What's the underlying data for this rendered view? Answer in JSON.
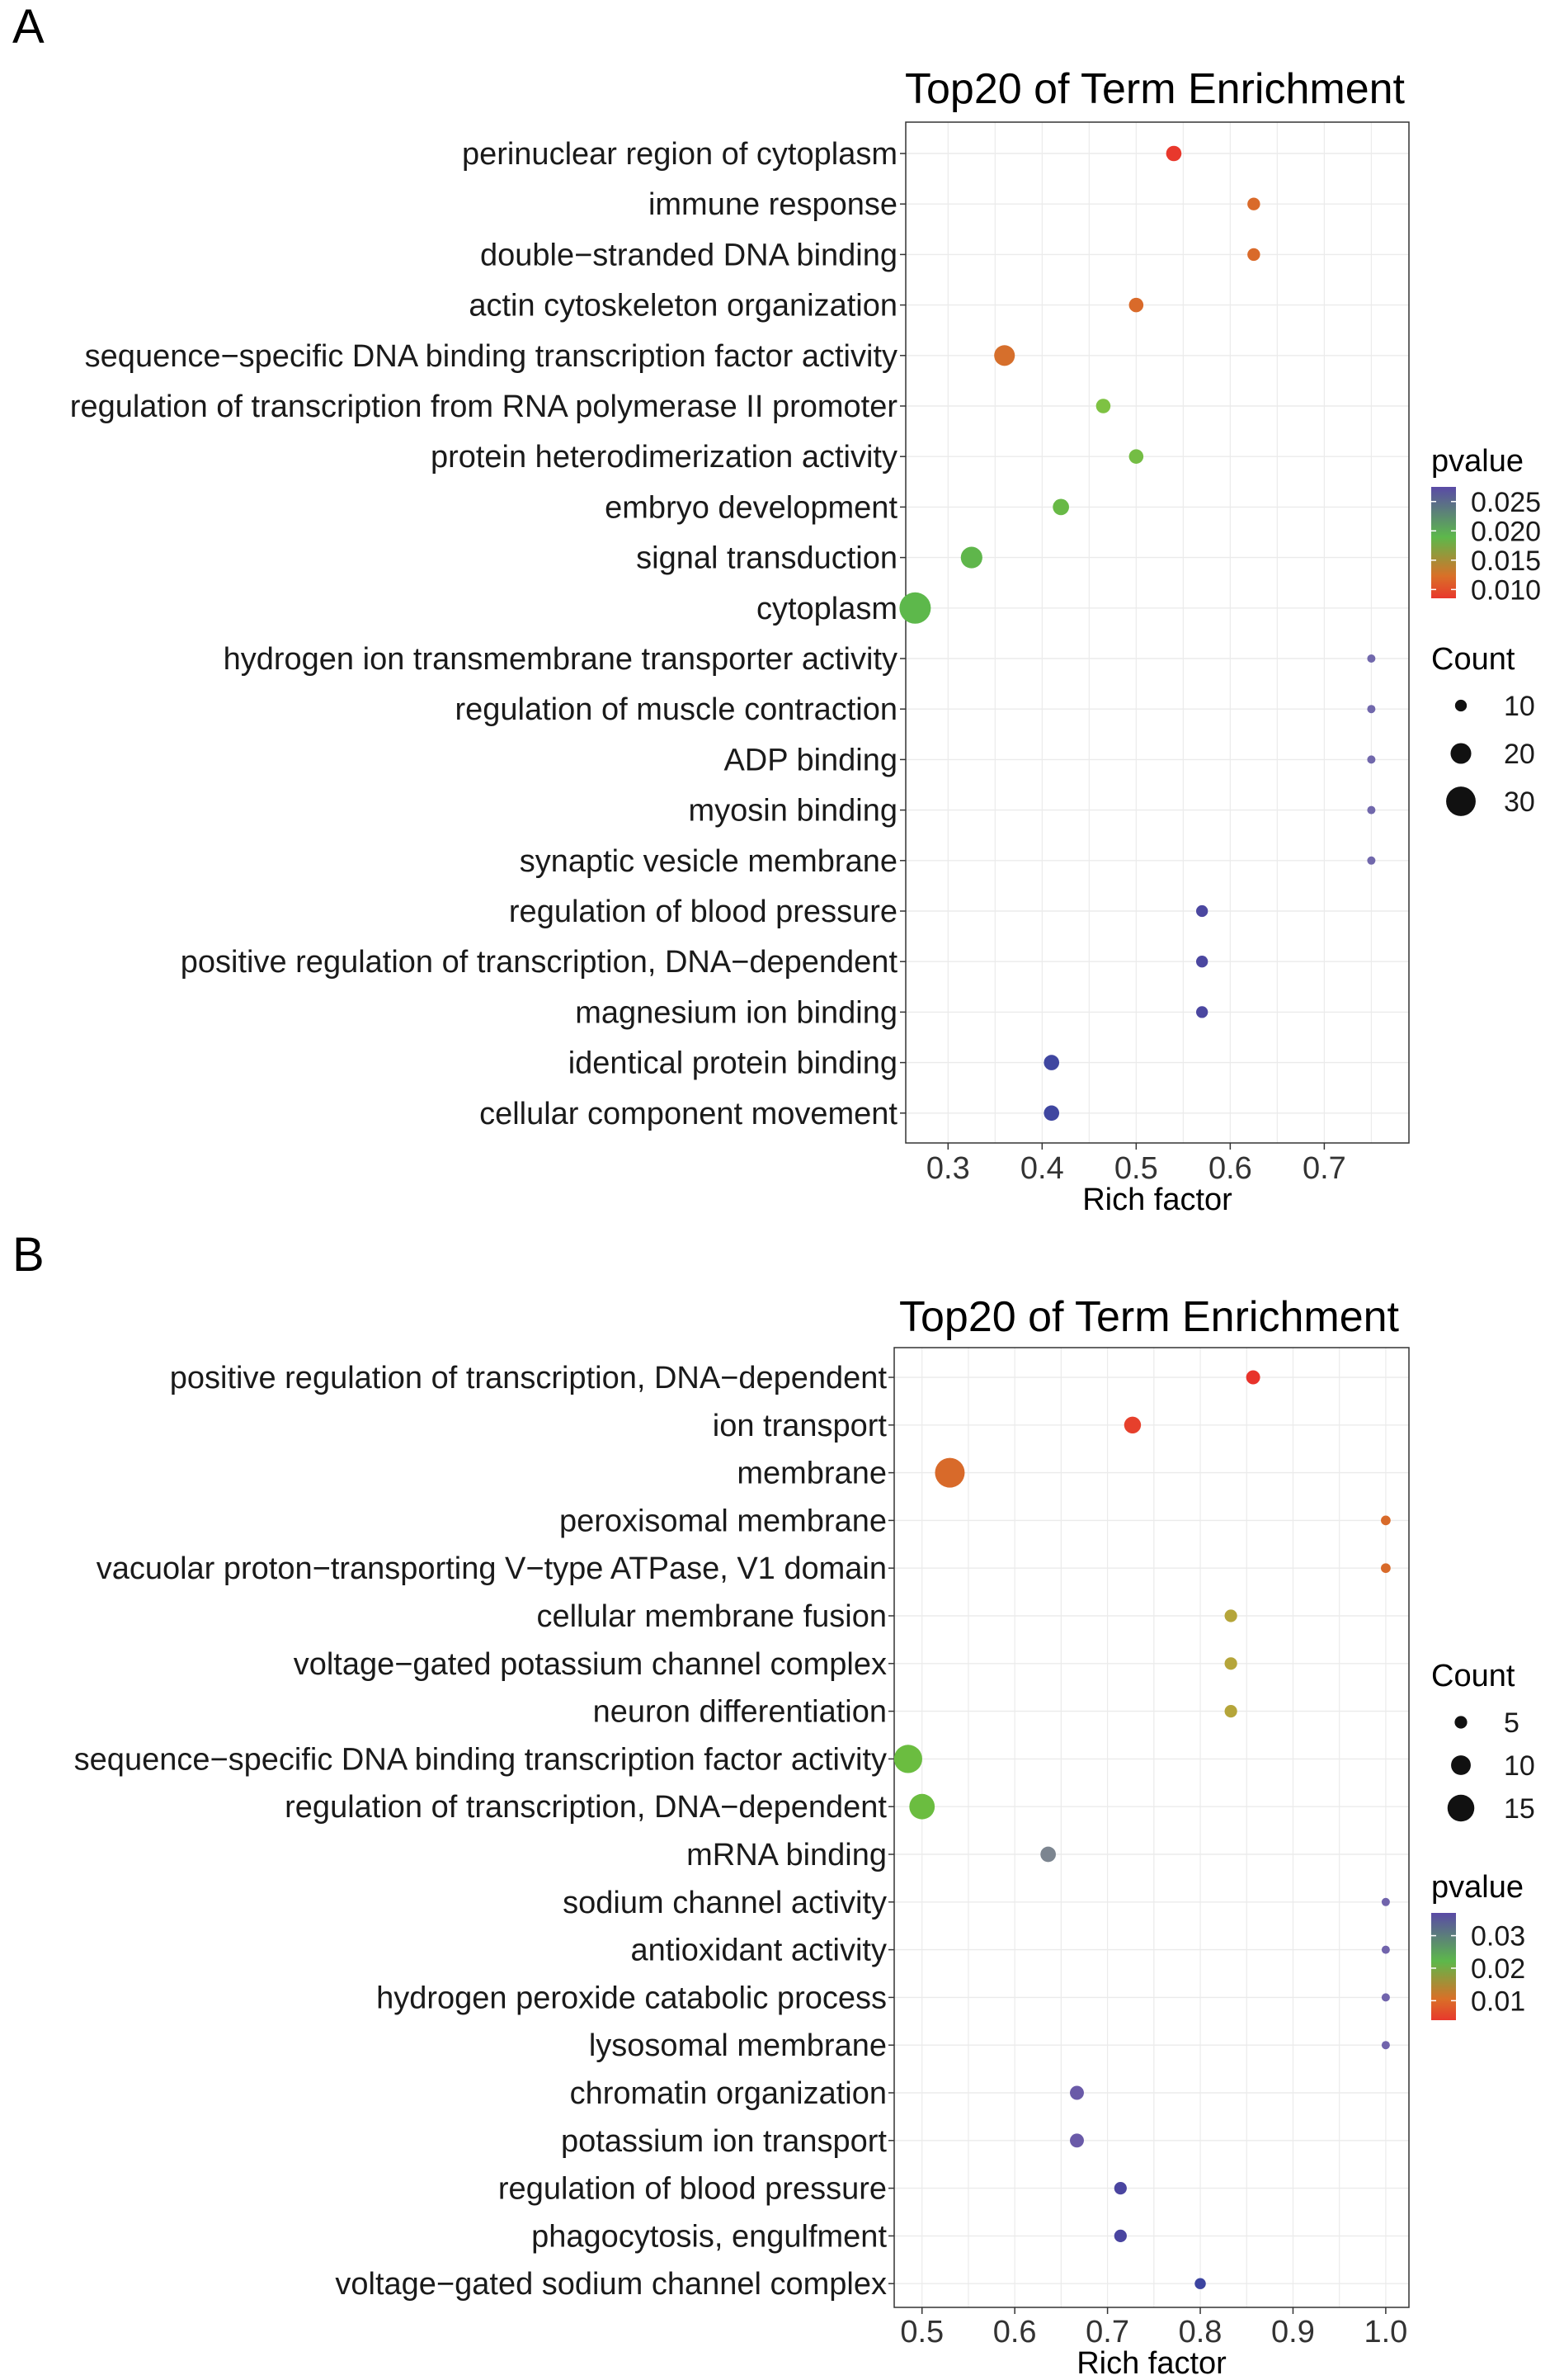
{
  "chart_data": [
    {
      "panel": "A",
      "type": "scatter",
      "title": "Top20 of Term Enrichment",
      "xlabel": "Rich factor",
      "ylabel": "",
      "xlim": [
        0.255,
        0.79
      ],
      "xticks": [
        "0.3",
        "0.4",
        "0.5",
        "0.6",
        "0.7"
      ],
      "grid": true,
      "legend_position": "right",
      "color_legend": {
        "title": "pvalue",
        "ticks": [
          "0.025",
          "0.020",
          "0.015",
          "0.010"
        ],
        "range": [
          0.0085,
          0.0275
        ],
        "colors": {
          "low": "#e8382c",
          "mid_low": "#d97028",
          "mid": "#5db84b",
          "high": "#5a4aa6"
        }
      },
      "size_legend": {
        "title": "Count",
        "values": [
          10,
          20,
          30
        ],
        "labels": [
          "10",
          "20",
          "30"
        ]
      },
      "points": [
        {
          "term": "perinuclear region of cytoplasm",
          "x": 0.54,
          "count": 14,
          "pvalue": 0.0092,
          "color": "#e8382c"
        },
        {
          "term": "immune response",
          "x": 0.625,
          "count": 11,
          "pvalue": 0.011,
          "color": "#d96a2a"
        },
        {
          "term": "double−stranded DNA binding",
          "x": 0.625,
          "count": 11,
          "pvalue": 0.011,
          "color": "#d96a2a"
        },
        {
          "term": "actin cytoskeleton organization",
          "x": 0.5,
          "count": 13,
          "pvalue": 0.011,
          "color": "#d96a2a"
        },
        {
          "term": "sequence−specific DNA binding transcription factor activity",
          "x": 0.36,
          "count": 20,
          "pvalue": 0.011,
          "color": "#d66f2c"
        },
        {
          "term": "regulation of transcription from RNA polymerase II promoter",
          "x": 0.465,
          "count": 13,
          "pvalue": 0.0185,
          "color": "#7ec243"
        },
        {
          "term": "protein heterodimerization activity",
          "x": 0.5,
          "count": 13,
          "pvalue": 0.0185,
          "color": "#74bd44"
        },
        {
          "term": "embryo development",
          "x": 0.42,
          "count": 15,
          "pvalue": 0.019,
          "color": "#68b946"
        },
        {
          "term": "signal transduction",
          "x": 0.325,
          "count": 21,
          "pvalue": 0.0195,
          "color": "#5fb64b"
        },
        {
          "term": "cytoplasm",
          "x": 0.265,
          "count": 32,
          "pvalue": 0.0198,
          "color": "#5db84b"
        },
        {
          "term": "hydrogen ion transmembrane transporter activity",
          "x": 0.75,
          "count": 6,
          "pvalue": 0.0255,
          "color": "#7168ac"
        },
        {
          "term": "regulation of muscle contraction",
          "x": 0.75,
          "count": 6,
          "pvalue": 0.0255,
          "color": "#7168ac"
        },
        {
          "term": "ADP binding",
          "x": 0.75,
          "count": 6,
          "pvalue": 0.0255,
          "color": "#7168ac"
        },
        {
          "term": "myosin binding",
          "x": 0.75,
          "count": 6,
          "pvalue": 0.0255,
          "color": "#7168ac"
        },
        {
          "term": "synaptic vesicle membrane",
          "x": 0.75,
          "count": 6,
          "pvalue": 0.0255,
          "color": "#7168ac"
        },
        {
          "term": "regulation of blood pressure",
          "x": 0.57,
          "count": 10,
          "pvalue": 0.027,
          "color": "#4b47a0"
        },
        {
          "term": "positive regulation of transcription, DNA−dependent",
          "x": 0.57,
          "count": 10,
          "pvalue": 0.027,
          "color": "#4b47a0"
        },
        {
          "term": "magnesium ion binding",
          "x": 0.57,
          "count": 10,
          "pvalue": 0.027,
          "color": "#4b47a0"
        },
        {
          "term": "identical protein binding",
          "x": 0.41,
          "count": 14,
          "pvalue": 0.0272,
          "color": "#3f46a0"
        },
        {
          "term": "cellular component movement",
          "x": 0.41,
          "count": 14,
          "pvalue": 0.0272,
          "color": "#3f46a0"
        }
      ]
    },
    {
      "panel": "B",
      "type": "scatter",
      "title": "Top20 of Term Enrichment",
      "xlabel": "Rich factor",
      "ylabel": "",
      "xlim": [
        0.47,
        1.025
      ],
      "xticks": [
        "0.5",
        "0.6",
        "0.7",
        "0.8",
        "0.9",
        "1.0"
      ],
      "grid": true,
      "legend_position": "right",
      "size_legend": {
        "title": "Count",
        "values": [
          5,
          10,
          15
        ],
        "labels": [
          "5",
          "10",
          "15"
        ]
      },
      "color_legend": {
        "title": "pvalue",
        "ticks": [
          "0.03",
          "0.02",
          "0.01"
        ],
        "range": [
          0.004,
          0.037
        ],
        "colors": {
          "low": "#e8382c",
          "mid_low": "#d97028",
          "mid": "#5db84b",
          "high": "#5a4aa6"
        }
      },
      "points": [
        {
          "term": "positive regulation of transcription, DNA−dependent",
          "x": 0.857,
          "count": 6,
          "pvalue": 0.005,
          "color": "#e8332b"
        },
        {
          "term": "ion transport",
          "x": 0.727,
          "count": 8,
          "pvalue": 0.006,
          "color": "#e6402c"
        },
        {
          "term": "membrane",
          "x": 0.53,
          "count": 17,
          "pvalue": 0.01,
          "color": "#d86a2a"
        },
        {
          "term": "peroxisomal membrane",
          "x": 1.0,
          "count": 3,
          "pvalue": 0.011,
          "color": "#d86a2a"
        },
        {
          "term": "vacuolar proton−transporting V−type ATPase, V1 domain",
          "x": 1.0,
          "count": 3,
          "pvalue": 0.011,
          "color": "#d86a2a"
        },
        {
          "term": "cellular membrane fusion",
          "x": 0.833,
          "count": 5,
          "pvalue": 0.016,
          "color": "#b5a53a"
        },
        {
          "term": "voltage−gated potassium channel complex",
          "x": 0.833,
          "count": 5,
          "pvalue": 0.016,
          "color": "#b5a53a"
        },
        {
          "term": "neuron differentiation",
          "x": 0.833,
          "count": 5,
          "pvalue": 0.016,
          "color": "#b5a53a"
        },
        {
          "term": "sequence−specific DNA binding transcription factor activity",
          "x": 0.485,
          "count": 16,
          "pvalue": 0.021,
          "color": "#6bbd40"
        },
        {
          "term": "regulation of transcription, DNA−dependent",
          "x": 0.5,
          "count": 14,
          "pvalue": 0.021,
          "color": "#6bbd40"
        },
        {
          "term": "mRNA binding",
          "x": 0.636,
          "count": 7,
          "pvalue": 0.025,
          "color": "#7c8590"
        },
        {
          "term": "sodium channel activity",
          "x": 1.0,
          "count": 2,
          "pvalue": 0.031,
          "color": "#7164ac"
        },
        {
          "term": "antioxidant activity",
          "x": 1.0,
          "count": 2,
          "pvalue": 0.031,
          "color": "#7164ac"
        },
        {
          "term": "hydrogen peroxide catabolic process",
          "x": 1.0,
          "count": 2,
          "pvalue": 0.031,
          "color": "#7164ac"
        },
        {
          "term": "lysosomal membrane",
          "x": 1.0,
          "count": 2,
          "pvalue": 0.031,
          "color": "#7164ac"
        },
        {
          "term": "chromatin organization",
          "x": 0.667,
          "count": 6,
          "pvalue": 0.032,
          "color": "#6a5aa8"
        },
        {
          "term": "potassium ion transport",
          "x": 0.667,
          "count": 6,
          "pvalue": 0.032,
          "color": "#6a5aa8"
        },
        {
          "term": "regulation of blood pressure",
          "x": 0.714,
          "count": 5,
          "pvalue": 0.035,
          "color": "#4a45a0"
        },
        {
          "term": "phagocytosis, engulfment",
          "x": 0.714,
          "count": 5,
          "pvalue": 0.035,
          "color": "#4a45a0"
        },
        {
          "term": "voltage−gated sodium channel complex",
          "x": 0.8,
          "count": 4,
          "pvalue": 0.036,
          "color": "#3c44a0"
        }
      ]
    }
  ]
}
